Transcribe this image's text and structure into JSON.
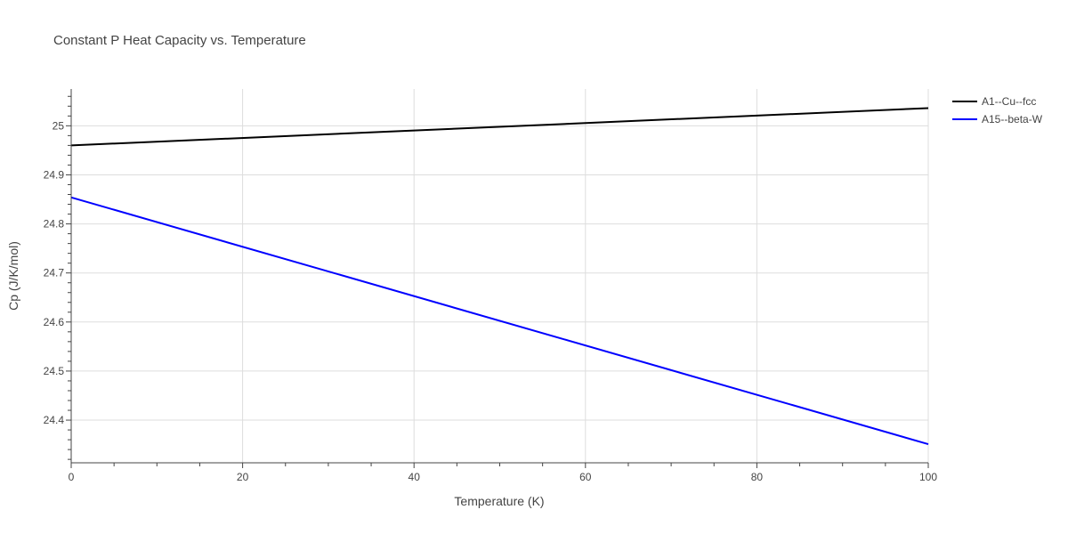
{
  "chart_data": {
    "type": "line",
    "title": "Constant P Heat Capacity vs. Temperature",
    "xlabel": "Temperature (K)",
    "ylabel": "Cp (J/K/mol)",
    "xlim": [
      0,
      100
    ],
    "ylim": [
      24.313,
      25.075
    ],
    "x_ticks": [
      0,
      20,
      40,
      60,
      80,
      100
    ],
    "y_ticks": [
      24.4,
      24.5,
      24.6,
      24.7,
      24.8,
      24.9,
      25
    ],
    "x_tick_labels": [
      "0",
      "20",
      "40",
      "60",
      "80",
      "100"
    ],
    "y_tick_labels": [
      "24.4",
      "24.5",
      "24.6",
      "24.7",
      "24.8",
      "24.9",
      "25"
    ],
    "grid": true,
    "legend_position": "top-right",
    "series": [
      {
        "name": "A1--Cu--fcc",
        "color": "#000000",
        "x": [
          0,
          100
        ],
        "y": [
          24.96,
          25.036
        ]
      },
      {
        "name": "A15--beta-W",
        "color": "#0000ff",
        "x": [
          0,
          100
        ],
        "y": [
          24.854,
          24.351
        ]
      }
    ]
  }
}
